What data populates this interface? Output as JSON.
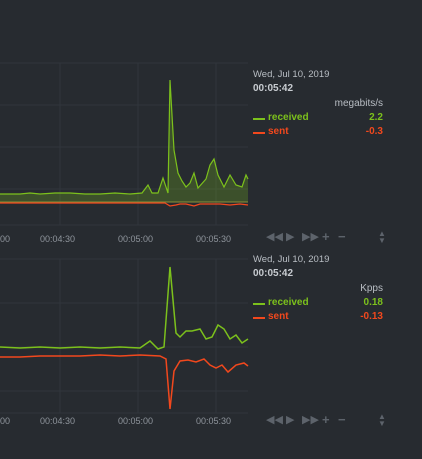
{
  "colors": {
    "received": "#7cc11c",
    "sent": "#f2481d",
    "grid": "#33383e",
    "background": "#272b30"
  },
  "charts": [
    {
      "legend": {
        "date": "Wed, Jul 10, 2019",
        "time": "00:05:42",
        "unit": "megabits/s",
        "received_label": "received",
        "received_value": "2.2",
        "sent_label": "sent",
        "sent_value": "-0.3"
      },
      "x_ticks": [
        "00",
        "00:04:30",
        "00:05:00",
        "00:05:30"
      ]
    },
    {
      "legend": {
        "date": "Wed, Jul 10, 2019",
        "time": "00:05:42",
        "unit": "Kpps",
        "received_label": "received",
        "received_value": "0.18",
        "sent_label": "sent",
        "sent_value": "-0.13"
      },
      "x_ticks": [
        "00",
        "00:04:30",
        "00:05:00",
        "00:05:30"
      ]
    }
  ],
  "controls": {
    "icons": [
      "rewind-icon",
      "play-icon",
      "fast-forward-icon",
      "zoom-in-icon",
      "zoom-out-icon",
      "resize-handle-icon"
    ]
  }
}
